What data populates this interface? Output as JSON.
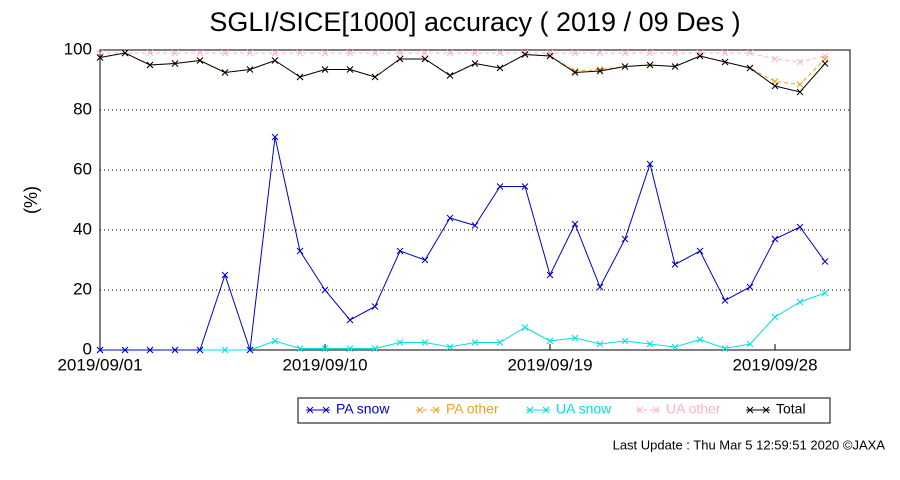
{
  "chart_data": {
    "type": "line",
    "title": "SGLI/SICE[1000] accuracy ( 2019 / 09 Des )",
    "y_label": "(%)",
    "footer": "Last Update : Thu Mar  5 12:59:51 2020 ©JAXA",
    "categories": [
      "2019/09/01",
      null,
      null,
      null,
      null,
      null,
      null,
      null,
      null,
      "2019/09/10",
      null,
      null,
      null,
      null,
      null,
      null,
      null,
      null,
      "2019/09/19",
      null,
      null,
      null,
      null,
      null,
      null,
      null,
      null,
      "2019/09/28",
      null,
      null
    ],
    "ylim": [
      0,
      100
    ],
    "yticks": [
      0,
      20,
      40,
      60,
      80,
      100
    ],
    "grid": true,
    "series": [
      {
        "name": "PA snow",
        "color": "#0000cc",
        "dashed": false,
        "values": [
          0,
          0,
          0,
          0,
          0,
          25,
          0,
          71,
          33,
          20,
          10,
          14.5,
          33,
          30,
          44,
          41.5,
          54.5,
          54.5,
          25,
          42,
          21,
          37,
          62,
          28.5,
          33,
          16.5,
          21,
          37,
          41,
          29.5
        ]
      },
      {
        "name": "PA other",
        "color": "#f0a020",
        "dashed": true,
        "values": [
          97.5,
          99,
          95,
          95.5,
          96.5,
          92.5,
          93.5,
          96.5,
          91,
          93.5,
          93.5,
          91,
          97,
          97,
          91.5,
          95.5,
          94,
          98.5,
          98,
          93,
          93.5,
          94.5,
          95,
          94.5,
          98,
          96,
          94,
          89.5,
          88.5,
          97
        ]
      },
      {
        "name": "UA snow",
        "color": "#00e0e0",
        "dashed": false,
        "values": [
          0,
          0,
          0,
          0,
          0,
          0,
          0,
          3,
          0.5,
          0.5,
          0.5,
          0.5,
          2.5,
          2.5,
          1,
          2.5,
          2.5,
          7.5,
          3,
          4,
          2,
          3,
          2,
          1,
          3.5,
          0.5,
          2,
          11,
          16,
          19
        ]
      },
      {
        "name": "UA other",
        "color": "#ffb0c8",
        "dashed": true,
        "values": [
          99,
          99,
          99,
          99,
          99,
          99,
          99,
          99,
          99,
          99,
          99,
          99,
          99,
          99,
          99,
          99,
          99,
          99,
          99,
          99,
          99,
          99,
          99,
          99,
          99,
          99,
          99,
          97,
          96,
          98
        ]
      },
      {
        "name": "Total",
        "color": "#000000",
        "dashed": false,
        "values": [
          97.5,
          99,
          95,
          95.5,
          96.5,
          92.5,
          93.5,
          96.5,
          91,
          93.5,
          93.5,
          91,
          97,
          97,
          91.5,
          95.5,
          94,
          98.5,
          98,
          92.5,
          93,
          94.5,
          95,
          94.5,
          98,
          96,
          94,
          88,
          86,
          95.5
        ]
      }
    ]
  }
}
